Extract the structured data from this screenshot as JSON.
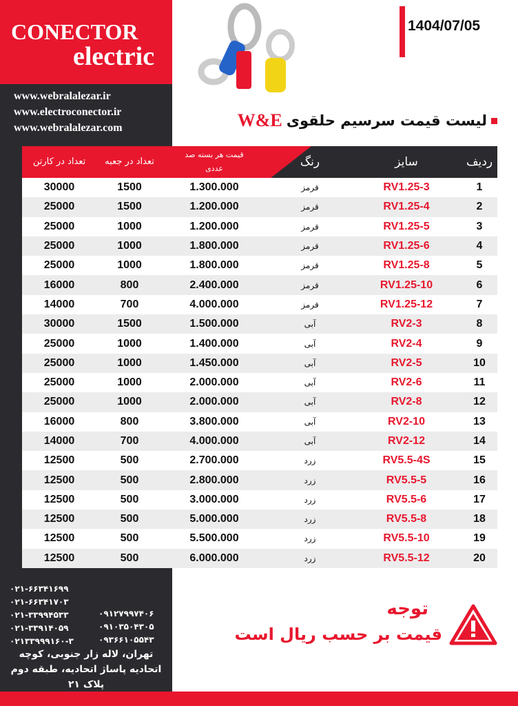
{
  "brand": {
    "line1": "CONECTOR",
    "line2": "electric"
  },
  "urls": [
    "www.webralalezar.ir",
    "www.electroconector.ir",
    "www.webralalezar.com"
  ],
  "date": "1404/07/05",
  "title": {
    "text": "لیست قیمت سرسیم حلقوی",
    "brand": "W&E"
  },
  "colors": {
    "accent": "#e8172e",
    "dark": "#2b2b2f"
  },
  "table": {
    "headers": {
      "carton": "تعداد در کارتن",
      "box": "تعداد در جعبه",
      "price": "قیمت هر بسته صد عددی",
      "color": "رنگ",
      "size": "سایز",
      "row": "ردیف"
    },
    "rows": [
      [
        "30000",
        "1500",
        "1.300.000",
        "قرمز",
        "RV1.25-3",
        "1"
      ],
      [
        "25000",
        "1500",
        "1.200.000",
        "قرمز",
        "RV1.25-4",
        "2"
      ],
      [
        "25000",
        "1000",
        "1.200.000",
        "قرمز",
        "RV1.25-5",
        "3"
      ],
      [
        "25000",
        "1000",
        "1.800.000",
        "قرمز",
        "RV1.25-6",
        "4"
      ],
      [
        "25000",
        "1000",
        "1.800.000",
        "قرمز",
        "RV1.25-8",
        "5"
      ],
      [
        "16000",
        "800",
        "2.400.000",
        "قرمز",
        "RV1.25-10",
        "6"
      ],
      [
        "14000",
        "700",
        "4.000.000",
        "قرمز",
        "RV1.25-12",
        "7"
      ],
      [
        "30000",
        "1500",
        "1.500.000",
        "آبی",
        "RV2-3",
        "8"
      ],
      [
        "25000",
        "1000",
        "1.400.000",
        "آبی",
        "RV2-4",
        "9"
      ],
      [
        "25000",
        "1000",
        "1.450.000",
        "آبی",
        "RV2-5",
        "10"
      ],
      [
        "25000",
        "1000",
        "2.000.000",
        "آبی",
        "RV2-6",
        "11"
      ],
      [
        "25000",
        "1000",
        "2.000.000",
        "آبی",
        "RV2-8",
        "12"
      ],
      [
        "16000",
        "800",
        "3.800.000",
        "آبی",
        "RV2-10",
        "13"
      ],
      [
        "14000",
        "700",
        "4.000.000",
        "آبی",
        "RV2-12",
        "14"
      ],
      [
        "12500",
        "500",
        "2.700.000",
        "زرد",
        "RV5.5-4S",
        "15"
      ],
      [
        "12500",
        "500",
        "2.800.000",
        "زرد",
        "RV5.5-5",
        "16"
      ],
      [
        "12500",
        "500",
        "3.000.000",
        "زرد",
        "RV5.5-6",
        "17"
      ],
      [
        "12500",
        "500",
        "5.000.000",
        "زرد",
        "RV5.5-8",
        "18"
      ],
      [
        "12500",
        "500",
        "5.500.000",
        "زرد",
        "RV5.5-10",
        "19"
      ],
      [
        "12500",
        "500",
        "6.000.000",
        "زرد",
        "RV5.5-12",
        "20"
      ]
    ]
  },
  "contact": {
    "phones": [
      "۰۲۱-۶۶۳۴۱۶۹۹",
      "۰۲۱-۶۶۳۴۱۷۰۳",
      "۰۲۱-۳۳۹۹۴۵۳۳",
      "۰۲۱-۳۳۹۱۴۰۵۹",
      "۰۲۱۳۳۹۹۹۱۶۰-۳"
    ],
    "mobiles": [
      "۰۹۱۲۷۹۹۷۴۰۶",
      "۰۹۱۰۳۵۰۴۳۰۵",
      "۰۹۳۶۶۱۰۵۵۴۳"
    ],
    "address": "تهران، لاله زار جنوبی، کوچه اتحادیه پاساژ اتحادیه، طبقه دوم پلاک ۲۱"
  },
  "note": {
    "title": "توجه",
    "text": "قیمت بر حسب ریال است",
    "icon": "warning-icon"
  }
}
